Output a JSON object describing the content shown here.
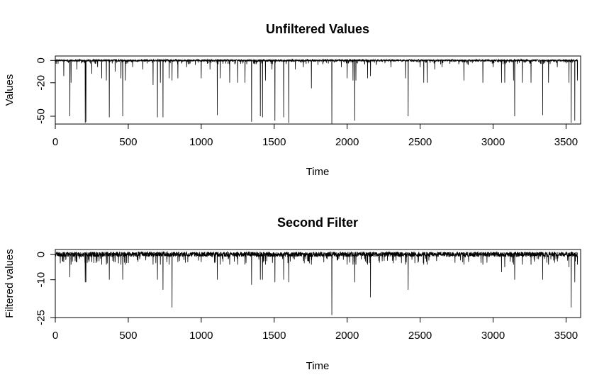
{
  "chart_data": [
    {
      "type": "line",
      "title": "Unfiltered Values",
      "xlabel": "Time",
      "ylabel": "Values",
      "xlim": [
        0,
        3600
      ],
      "ylim": [
        -57,
        4
      ],
      "xticks": [
        0,
        500,
        1000,
        1500,
        2000,
        2500,
        3000,
        3500
      ],
      "yticks": [
        0,
        -20,
        -50
      ],
      "ytick_labels": [
        "0",
        "-20",
        "-50"
      ],
      "grid": false,
      "series": [
        {
          "x_range": [
            1,
            3580
          ],
          "baseline": 0,
          "noise_range": [
            -1.5,
            1.5
          ],
          "spikes": [
            [
              58,
              -14
            ],
            [
              100,
              -50
            ],
            [
              108,
              -20
            ],
            [
              148,
              -8
            ],
            [
              205,
              -56
            ],
            [
              210,
              -55
            ],
            [
              250,
              -12
            ],
            [
              290,
              -6
            ],
            [
              318,
              -16
            ],
            [
              350,
              -18
            ],
            [
              370,
              -51
            ],
            [
              410,
              -10
            ],
            [
              450,
              -16
            ],
            [
              462,
              -50
            ],
            [
              480,
              -18
            ],
            [
              530,
              -6
            ],
            [
              600,
              -8
            ],
            [
              670,
              -22
            ],
            [
              700,
              -51
            ],
            [
              720,
              -20
            ],
            [
              738,
              -51
            ],
            [
              780,
              -16
            ],
            [
              800,
              -18
            ],
            [
              840,
              -16
            ],
            [
              900,
              -6
            ],
            [
              960,
              -4
            ],
            [
              1000,
              -16
            ],
            [
              1060,
              -8
            ],
            [
              1110,
              -49
            ],
            [
              1130,
              -16
            ],
            [
              1195,
              -20
            ],
            [
              1250,
              -20
            ],
            [
              1300,
              -20
            ],
            [
              1345,
              -55
            ],
            [
              1405,
              -50
            ],
            [
              1420,
              -51
            ],
            [
              1440,
              -18
            ],
            [
              1485,
              -8
            ],
            [
              1505,
              -54
            ],
            [
              1565,
              -51
            ],
            [
              1600,
              -56
            ],
            [
              1645,
              -8
            ],
            [
              1700,
              -6
            ],
            [
              1755,
              -25
            ],
            [
              1800,
              -4
            ],
            [
              1895,
              -57
            ],
            [
              1960,
              -6
            ],
            [
              2000,
              -16
            ],
            [
              2040,
              -18
            ],
            [
              2052,
              -54
            ],
            [
              2060,
              -18
            ],
            [
              2140,
              -16
            ],
            [
              2160,
              -14
            ],
            [
              2200,
              -4
            ],
            [
              2300,
              -6
            ],
            [
              2400,
              -16
            ],
            [
              2418,
              -50
            ],
            [
              2500,
              -6
            ],
            [
              2525,
              -20
            ],
            [
              2548,
              -20
            ],
            [
              2600,
              -8
            ],
            [
              2650,
              -6
            ],
            [
              2800,
              -18
            ],
            [
              2830,
              -4
            ],
            [
              2930,
              -20
            ],
            [
              3000,
              -6
            ],
            [
              3058,
              -20
            ],
            [
              3080,
              -20
            ],
            [
              3140,
              -18
            ],
            [
              3148,
              -50
            ],
            [
              3200,
              -20
            ],
            [
              3260,
              -20
            ],
            [
              3340,
              -49
            ],
            [
              3380,
              -20
            ],
            [
              3440,
              -6
            ],
            [
              3520,
              -20
            ],
            [
              3535,
              -56
            ],
            [
              3560,
              -54
            ],
            [
              3578,
              -18
            ]
          ]
        }
      ]
    },
    {
      "type": "line",
      "title": "Second Filter",
      "xlabel": "Time",
      "ylabel": "Filtered values",
      "xlim": [
        0,
        3600
      ],
      "ylim": [
        -25,
        2
      ],
      "xticks": [
        0,
        500,
        1000,
        1500,
        2000,
        2500,
        3000,
        3500
      ],
      "yticks": [
        0,
        -10,
        -25
      ],
      "ytick_labels": [
        "0",
        "-10",
        "-25"
      ],
      "grid": false,
      "series": [
        {
          "x_range": [
            1,
            3580
          ],
          "baseline": 0,
          "noise_range": [
            -1.5,
            1.8
          ],
          "spikes": [
            [
              58,
              -3
            ],
            [
              100,
              -9
            ],
            [
              108,
              -4
            ],
            [
              148,
              -3
            ],
            [
              205,
              -11
            ],
            [
              210,
              -11
            ],
            [
              250,
              -3
            ],
            [
              318,
              -4
            ],
            [
              350,
              -4
            ],
            [
              370,
              -10
            ],
            [
              410,
              -3
            ],
            [
              450,
              -4
            ],
            [
              462,
              -10
            ],
            [
              480,
              -4
            ],
            [
              670,
              -4
            ],
            [
              700,
              -10
            ],
            [
              720,
              -4
            ],
            [
              738,
              -14
            ],
            [
              780,
              -4
            ],
            [
              800,
              -21
            ],
            [
              840,
              -3
            ],
            [
              1000,
              -3
            ],
            [
              1110,
              -10
            ],
            [
              1130,
              -4
            ],
            [
              1195,
              -4
            ],
            [
              1250,
              -4
            ],
            [
              1300,
              -4
            ],
            [
              1345,
              -12
            ],
            [
              1405,
              -10
            ],
            [
              1420,
              -10
            ],
            [
              1440,
              -4
            ],
            [
              1505,
              -11
            ],
            [
              1565,
              -10
            ],
            [
              1600,
              -11
            ],
            [
              1755,
              -4
            ],
            [
              1895,
              -24
            ],
            [
              2000,
              -4
            ],
            [
              2040,
              -4
            ],
            [
              2052,
              -11
            ],
            [
              2060,
              -4
            ],
            [
              2140,
              -4
            ],
            [
              2160,
              -17
            ],
            [
              2400,
              -4
            ],
            [
              2418,
              -14
            ],
            [
              2525,
              -4
            ],
            [
              2548,
              -4
            ],
            [
              2800,
              -4
            ],
            [
              2930,
              -4
            ],
            [
              3058,
              -7
            ],
            [
              3080,
              -5
            ],
            [
              3140,
              -4
            ],
            [
              3148,
              -10
            ],
            [
              3200,
              -4
            ],
            [
              3260,
              -4
            ],
            [
              3340,
              -10
            ],
            [
              3380,
              -4
            ],
            [
              3520,
              -5
            ],
            [
              3535,
              -21
            ],
            [
              3560,
              -11
            ],
            [
              3578,
              -4
            ]
          ]
        }
      ]
    }
  ]
}
